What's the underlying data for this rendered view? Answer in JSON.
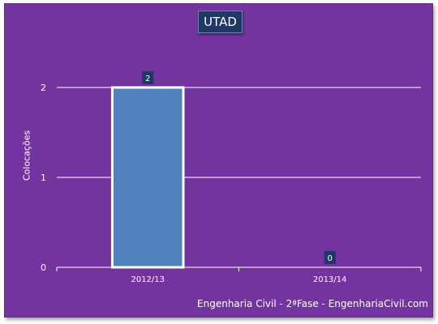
{
  "colors": {
    "background": "#7434a0",
    "bar": "#4f81bd",
    "bar_outline": "#ffffff",
    "label_box": "#1f3864",
    "gridline": "#ffffff",
    "text": "#ffffff"
  },
  "chart_data": {
    "type": "bar",
    "title": "UTAD",
    "ylabel": "Colocações",
    "xlabel": "",
    "categories": [
      "2012/13",
      "2013/14"
    ],
    "values": [
      2,
      0
    ],
    "data_labels": [
      "2",
      "0"
    ],
    "ylim": [
      0,
      2
    ],
    "y_ticks": [
      0,
      1,
      2
    ],
    "grid": true,
    "legend": "none"
  },
  "footer": "Engenharia Civil - 2ªFase - EngenhariaCivil.com"
}
